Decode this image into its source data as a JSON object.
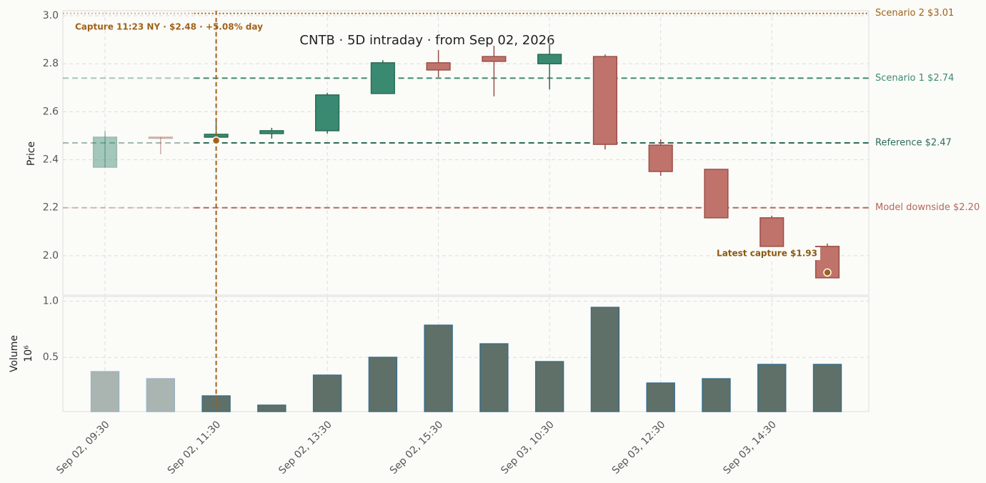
{
  "chart_data": {
    "type": "candlestick",
    "title": "CNTB  ·  5D intraday  ·  from Sep 02, 2026",
    "categories": [
      "Sep 02, 09:30",
      null,
      "Sep 02, 11:30",
      null,
      "Sep 02, 13:30",
      null,
      "Sep 02, 15:30",
      null,
      "Sep 03, 10:30",
      null,
      "Sep 03, 12:30",
      null,
      "Sep 03, 14:30",
      null
    ],
    "open": [
      2.369,
      2.494,
      2.494,
      2.509,
      2.521,
      2.676,
      2.804,
      2.83,
      2.8,
      2.83,
      2.461,
      2.36,
      2.158,
      2.039
    ],
    "high": [
      2.521,
      2.494,
      2.574,
      2.533,
      2.679,
      2.815,
      2.857,
      2.875,
      2.881,
      2.839,
      2.485,
      2.36,
      2.167,
      2.051
    ],
    "low": [
      2.369,
      2.423,
      2.494,
      2.488,
      2.509,
      2.676,
      2.744,
      2.664,
      2.693,
      2.443,
      2.333,
      2.158,
      2.039,
      1.908
    ],
    "close": [
      2.494,
      2.491,
      2.506,
      2.521,
      2.67,
      2.804,
      2.774,
      2.81,
      2.839,
      2.464,
      2.351,
      2.158,
      2.039,
      1.908
    ],
    "up_color": "#3a8a72",
    "down_color": "#c0736a",
    "volume": [
      0.374,
      0.311,
      0.159,
      0.077,
      0.343,
      0.501,
      0.786,
      0.621,
      0.463,
      0.944,
      0.273,
      0.311,
      0.438,
      0.438
    ],
    "volume_color": "#5f7068",
    "ylabel": "Price",
    "ylim": [
      1.836,
      3.021
    ],
    "yticks": [
      {
        "value": 2,
        "label": "2.0"
      },
      2.2,
      2.4,
      2.6,
      2.8,
      {
        "value": 3,
        "label": "3.0"
      }
    ],
    "y2label": "Volume",
    "y2_multiplier": "10⁶",
    "y2lim": [
      0.02,
      1.04
    ],
    "y2ticks": [
      0.5,
      {
        "value": 1,
        "label": "1.0"
      }
    ],
    "grid": true,
    "levels": [
      {
        "label": "Scenario 2 $3.01",
        "value": 3.01,
        "color": "#a0621a",
        "style": "dotted"
      },
      {
        "label": "Scenario 1 $2.74",
        "value": 2.74,
        "color": "#3d8a72",
        "style": "dashed"
      },
      {
        "label": "Reference $2.47",
        "value": 2.47,
        "color": "#2e6b5a",
        "style": "dashed"
      },
      {
        "label": "Model downside $2.20",
        "value": 2.2,
        "color": "#b5675c",
        "style": "dashed"
      }
    ],
    "capture": {
      "label": "Capture 11:23 NY · $2.48 · +5.08% day",
      "price": 2.48,
      "color": "#a0621a"
    },
    "latest": {
      "label": "Latest capture $1.93",
      "price": 1.93,
      "color": "#8a5a10"
    }
  }
}
